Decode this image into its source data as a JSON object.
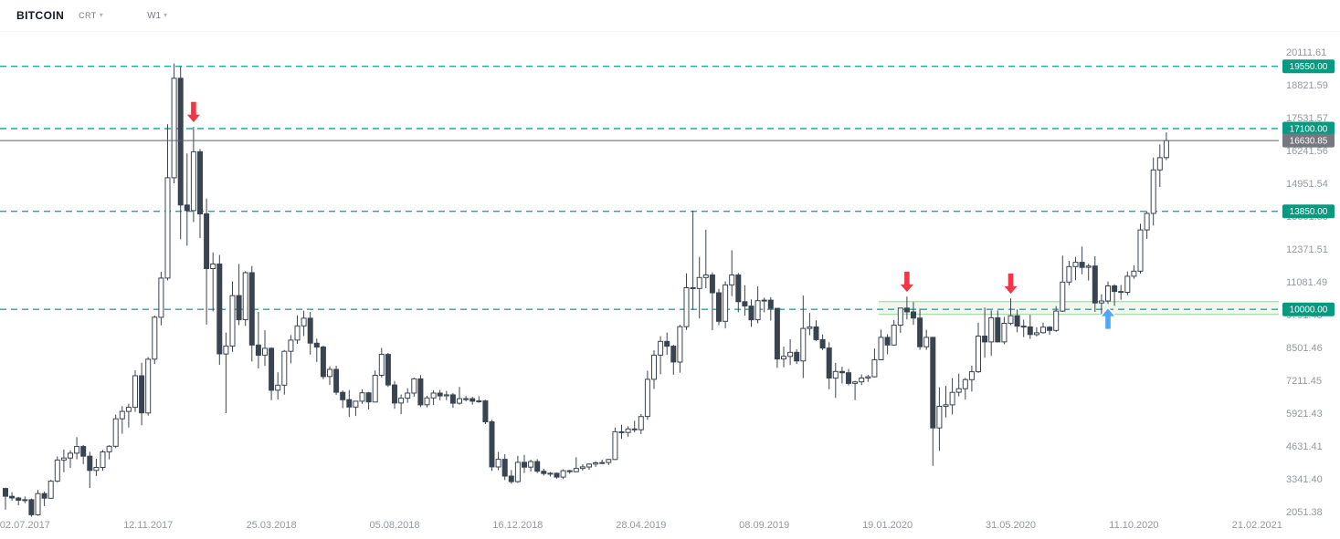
{
  "header": {
    "symbol": "BITCOIN",
    "symbol_type": "CRT",
    "timeframe": "W1"
  },
  "colors": {
    "level_line": "#26a69a",
    "level_pill": "#089981",
    "current_pill": "#75787e",
    "current_line": "#5d616b",
    "candle": "#3a4450",
    "candle_up_fill": "#ffffff",
    "zone": "#4caf50",
    "arrow_down": "#f23645",
    "arrow_up": "#4fa8f5",
    "axis_text": "#9598a1"
  },
  "chart_data": {
    "type": "candlestick",
    "symbol": "BITCOIN",
    "timeframe": "W1",
    "grid": false,
    "ylim": [
      2051.38,
      20111.61
    ],
    "current_price": {
      "value": 16630.85,
      "label": "16630.85"
    },
    "price_levels": [
      19550.0,
      17100.0,
      13850.0,
      10000.0
    ],
    "y_axis": [
      20111.61,
      18821.59,
      17531.57,
      16241.56,
      14951.54,
      13661.53,
      12371.51,
      11081.49,
      9791.48,
      8501.46,
      7211.45,
      5921.43,
      4631.41,
      3341.4,
      2051.38
    ],
    "x_axis_labels": [
      "02.07.2017",
      "12.11.2017",
      "25.03.2018",
      "05.08.2018",
      "16.12.2018",
      "28.04.2019",
      "08.09.2019",
      "19.01.2020",
      "31.05.2020",
      "11.10.2020",
      "21.02.2021"
    ],
    "support_zone": {
      "from_date": "2020-01-12",
      "top": 10300,
      "bottom": 9800
    },
    "annotations": [
      {
        "type": "arrow-down",
        "date": "2017-12-31"
      },
      {
        "type": "arrow-down",
        "date": "2020-02-09"
      },
      {
        "type": "arrow-down",
        "date": "2020-05-31"
      },
      {
        "type": "arrow-up",
        "date": "2020-09-13"
      }
    ],
    "columns": [
      "date",
      "open",
      "high",
      "low",
      "close"
    ],
    "candles": [
      [
        "2017-06-11",
        2960,
        2995,
        2130,
        2655
      ],
      [
        "2017-06-18",
        2655,
        2815,
        2480,
        2590
      ],
      [
        "2017-06-25",
        2590,
        2635,
        2300,
        2500
      ],
      [
        "2017-07-02",
        2500,
        2650,
        2380,
        2520
      ],
      [
        "2017-07-09",
        2520,
        2565,
        1850,
        1930
      ],
      [
        "2017-07-16",
        1930,
        2900,
        1890,
        2760
      ],
      [
        "2017-07-23",
        2760,
        2845,
        2270,
        2580
      ],
      [
        "2017-07-30",
        2580,
        3300,
        2560,
        3250
      ],
      [
        "2017-08-06",
        3250,
        4215,
        3210,
        4080
      ],
      [
        "2017-08-13",
        4080,
        4490,
        3600,
        4160
      ],
      [
        "2017-08-20",
        4160,
        4455,
        3770,
        4350
      ],
      [
        "2017-08-27",
        4350,
        4980,
        4110,
        4610
      ],
      [
        "2017-09-03",
        4610,
        4670,
        3920,
        4230
      ],
      [
        "2017-09-10",
        4230,
        4400,
        2980,
        3670
      ],
      [
        "2017-09-17",
        3670,
        4125,
        3450,
        3790
      ],
      [
        "2017-09-24",
        3790,
        4475,
        3660,
        4400
      ],
      [
        "2017-10-01",
        4400,
        4665,
        4110,
        4620
      ],
      [
        "2017-10-08",
        4620,
        5865,
        4550,
        5700
      ],
      [
        "2017-10-15",
        5700,
        6195,
        5110,
        5990
      ],
      [
        "2017-10-22",
        5990,
        6290,
        5360,
        6150
      ],
      [
        "2017-10-29",
        6150,
        7605,
        5970,
        7390
      ],
      [
        "2017-11-05",
        7390,
        7900,
        5450,
        5930
      ],
      [
        "2017-11-12",
        5930,
        8125,
        5820,
        8040
      ],
      [
        "2017-11-19",
        8040,
        9760,
        7850,
        9690
      ],
      [
        "2017-11-26",
        9690,
        11480,
        9370,
        11230
      ],
      [
        "2017-12-03",
        11230,
        17270,
        11140,
        15170
      ],
      [
        "2017-12-10",
        15170,
        19660,
        14950,
        19080
      ],
      [
        "2017-12-17",
        19080,
        19550,
        12760,
        14100
      ],
      [
        "2017-12-24",
        14100,
        16125,
        12500,
        13880
      ],
      [
        "2017-12-31",
        13880,
        17170,
        13430,
        16190
      ],
      [
        "2018-01-07",
        16190,
        16300,
        12800,
        13750
      ],
      [
        "2018-01-14",
        13750,
        14350,
        9400,
        11600
      ],
      [
        "2018-01-21",
        11600,
        12240,
        9920,
        11780
      ],
      [
        "2018-01-28",
        11780,
        12140,
        7820,
        8250
      ],
      [
        "2018-02-04",
        8250,
        9085,
        5920,
        8560
      ],
      [
        "2018-02-11",
        8560,
        11090,
        8330,
        10540
      ],
      [
        "2018-02-18",
        10540,
        11785,
        9380,
        9590
      ],
      [
        "2018-02-25",
        9590,
        11500,
        9350,
        11440
      ],
      [
        "2018-03-04",
        11440,
        11700,
        7950,
        8600
      ],
      [
        "2018-03-11",
        8600,
        9900,
        7680,
        8200
      ],
      [
        "2018-03-18",
        8200,
        9180,
        7780,
        8470
      ],
      [
        "2018-03-25",
        8470,
        8510,
        6430,
        6820
      ],
      [
        "2018-04-01",
        6820,
        7525,
        6450,
        7020
      ],
      [
        "2018-04-08",
        7020,
        8400,
        6650,
        8350
      ],
      [
        "2018-04-15",
        8350,
        8990,
        7880,
        8790
      ],
      [
        "2018-04-22",
        8790,
        9765,
        8650,
        9350
      ],
      [
        "2018-04-29",
        9350,
        9950,
        8950,
        9650
      ],
      [
        "2018-05-06",
        9650,
        9900,
        8220,
        8670
      ],
      [
        "2018-05-13",
        8670,
        8850,
        7930,
        8520
      ],
      [
        "2018-05-20",
        8520,
        8575,
        7250,
        7360
      ],
      [
        "2018-05-27",
        7360,
        7755,
        7030,
        7640
      ],
      [
        "2018-06-03",
        7640,
        7780,
        6640,
        6740
      ],
      [
        "2018-06-10",
        6740,
        6815,
        6120,
        6450
      ],
      [
        "2018-06-17",
        6450,
        6830,
        5770,
        6160
      ],
      [
        "2018-06-24",
        6160,
        6400,
        5810,
        6390
      ],
      [
        "2018-07-01",
        6390,
        6855,
        6290,
        6720
      ],
      [
        "2018-07-08",
        6720,
        6755,
        6070,
        6360
      ],
      [
        "2018-07-15",
        6360,
        7600,
        6340,
        7410
      ],
      [
        "2018-07-22",
        7410,
        8485,
        7310,
        8230
      ],
      [
        "2018-07-29",
        8230,
        8285,
        6950,
        7030
      ],
      [
        "2018-08-05",
        7030,
        7185,
        6090,
        6320
      ],
      [
        "2018-08-12",
        6320,
        6655,
        5880,
        6510
      ],
      [
        "2018-08-19",
        6510,
        6900,
        6330,
        6710
      ],
      [
        "2018-08-26",
        6710,
        7315,
        6560,
        7270
      ],
      [
        "2018-09-02",
        7270,
        7415,
        6160,
        6250
      ],
      [
        "2018-09-09",
        6250,
        6605,
        6150,
        6520
      ],
      [
        "2018-09-16",
        6520,
        6825,
        6240,
        6710
      ],
      [
        "2018-09-23",
        6710,
        6835,
        6430,
        6600
      ],
      [
        "2018-09-30",
        6600,
        6795,
        6430,
        6640
      ],
      [
        "2018-10-07",
        6640,
        6715,
        6130,
        6310
      ],
      [
        "2018-10-14",
        6310,
        6955,
        6250,
        6490
      ],
      [
        "2018-10-21",
        6490,
        6605,
        6380,
        6490
      ],
      [
        "2018-10-28",
        6490,
        6565,
        6260,
        6390
      ],
      [
        "2018-11-04",
        6390,
        6585,
        6330,
        6400
      ],
      [
        "2018-11-11",
        6400,
        6445,
        5490,
        5580
      ],
      [
        "2018-11-18",
        5580,
        5655,
        3650,
        3810
      ],
      [
        "2018-11-25",
        3810,
        4395,
        3680,
        4110
      ],
      [
        "2018-12-02",
        4110,
        4305,
        3290,
        3450
      ],
      [
        "2018-12-09",
        3450,
        3685,
        3150,
        3230
      ],
      [
        "2018-12-16",
        3230,
        4245,
        3180,
        3990
      ],
      [
        "2018-12-23",
        3990,
        4285,
        3570,
        3800
      ],
      [
        "2018-12-30",
        3800,
        4095,
        3630,
        4020
      ],
      [
        "2019-01-06",
        4020,
        4115,
        3570,
        3640
      ],
      [
        "2019-01-13",
        3640,
        3735,
        3470,
        3550
      ],
      [
        "2019-01-20",
        3550,
        3605,
        3430,
        3560
      ],
      [
        "2019-01-27",
        3560,
        3585,
        3350,
        3410
      ],
      [
        "2019-02-03",
        3410,
        3715,
        3330,
        3660
      ],
      [
        "2019-02-10",
        3660,
        3695,
        3540,
        3620
      ],
      [
        "2019-02-17",
        3620,
        4190,
        3600,
        3750
      ],
      [
        "2019-02-24",
        3750,
        3915,
        3660,
        3810
      ],
      [
        "2019-03-03",
        3810,
        3955,
        3700,
        3920
      ],
      [
        "2019-03-10",
        3920,
        4035,
        3810,
        3970
      ],
      [
        "2019-03-17",
        3970,
        4095,
        3920,
        3980
      ],
      [
        "2019-03-24",
        3980,
        4125,
        3880,
        4100
      ],
      [
        "2019-03-31",
        4100,
        5350,
        4080,
        5190
      ],
      [
        "2019-04-07",
        5190,
        5465,
        4910,
        5160
      ],
      [
        "2019-04-14",
        5160,
        5405,
        5000,
        5300
      ],
      [
        "2019-04-21",
        5300,
        5625,
        5170,
        5270
      ],
      [
        "2019-04-28",
        5270,
        5890,
        5100,
        5790
      ],
      [
        "2019-05-05",
        5790,
        7590,
        5660,
        7250
      ],
      [
        "2019-05-12",
        7250,
        8390,
        6870,
        8200
      ],
      [
        "2019-05-19",
        8200,
        8945,
        7450,
        8740
      ],
      [
        "2019-05-26",
        8740,
        9090,
        8210,
        8550
      ],
      [
        "2019-06-02",
        8550,
        8605,
        7430,
        7930
      ],
      [
        "2019-06-09",
        7930,
        9395,
        7510,
        9320
      ],
      [
        "2019-06-16",
        9320,
        11410,
        9190,
        10850
      ],
      [
        "2019-06-23",
        10850,
        13880,
        9980,
        10820
      ],
      [
        "2019-06-30",
        10820,
        12060,
        9640,
        11250
      ],
      [
        "2019-07-07",
        11250,
        13130,
        10830,
        11350
      ],
      [
        "2019-07-14",
        11350,
        11450,
        9180,
        10650
      ],
      [
        "2019-07-21",
        10650,
        10800,
        9380,
        9530
      ],
      [
        "2019-07-28",
        9530,
        11100,
        9250,
        10960
      ],
      [
        "2019-08-04",
        10960,
        12320,
        10520,
        11350
      ],
      [
        "2019-08-11",
        11350,
        11430,
        9880,
        10300
      ],
      [
        "2019-08-18",
        10300,
        10950,
        9750,
        10130
      ],
      [
        "2019-08-25",
        10130,
        10390,
        9320,
        9590
      ],
      [
        "2019-09-01",
        9590,
        10900,
        9450,
        10340
      ],
      [
        "2019-09-08",
        10340,
        10460,
        9880,
        10360
      ],
      [
        "2019-09-15",
        10360,
        10480,
        9560,
        10040
      ],
      [
        "2019-09-22",
        10040,
        10045,
        7700,
        8050
      ],
      [
        "2019-09-29",
        8050,
        8535,
        7720,
        8150
      ],
      [
        "2019-10-06",
        8150,
        8825,
        7810,
        8310
      ],
      [
        "2019-10-13",
        8310,
        8435,
        7850,
        7970
      ],
      [
        "2019-10-20",
        7970,
        10540,
        7300,
        9250
      ],
      [
        "2019-10-27",
        9250,
        9855,
        8980,
        9310
      ],
      [
        "2019-11-03",
        9310,
        9565,
        8760,
        8810
      ],
      [
        "2019-11-10",
        8810,
        9015,
        8400,
        8480
      ],
      [
        "2019-11-17",
        8480,
        8705,
        6860,
        7300
      ],
      [
        "2019-11-24",
        7300,
        7895,
        6520,
        7560
      ],
      [
        "2019-12-01",
        7560,
        7745,
        7090,
        7510
      ],
      [
        "2019-12-08",
        7510,
        7655,
        7010,
        7090
      ],
      [
        "2019-12-15",
        7090,
        7185,
        6430,
        7150
      ],
      [
        "2019-12-22",
        7150,
        7445,
        7020,
        7300
      ],
      [
        "2019-12-29",
        7300,
        7425,
        7150,
        7350
      ],
      [
        "2020-01-05",
        7350,
        8460,
        7320,
        8020
      ],
      [
        "2020-01-12",
        8020,
        9200,
        8000,
        8900
      ],
      [
        "2020-01-19",
        8900,
        9025,
        8230,
        8600
      ],
      [
        "2020-01-26",
        8600,
        9575,
        8570,
        9380
      ],
      [
        "2020-02-02",
        9380,
        10050,
        9080,
        10050
      ],
      [
        "2020-02-09",
        10050,
        10500,
        9600,
        9900
      ],
      [
        "2020-02-16",
        9900,
        10285,
        9390,
        9660
      ],
      [
        "2020-02-23",
        9660,
        10030,
        8410,
        8530
      ],
      [
        "2020-03-01",
        8530,
        9195,
        8410,
        8900
      ],
      [
        "2020-03-08",
        8900,
        8905,
        3850,
        5340
      ],
      [
        "2020-03-15",
        5340,
        6940,
        4440,
        6190
      ],
      [
        "2020-03-22",
        6190,
        6985,
        5750,
        6250
      ],
      [
        "2020-03-29",
        6250,
        7295,
        5870,
        6740
      ],
      [
        "2020-04-05",
        6740,
        7475,
        6580,
        6880
      ],
      [
        "2020-04-12",
        6880,
        7305,
        6450,
        7240
      ],
      [
        "2020-04-19",
        7240,
        7785,
        6770,
        7550
      ],
      [
        "2020-04-26",
        7550,
        9475,
        7500,
        8950
      ],
      [
        "2020-05-03",
        8950,
        10070,
        8100,
        8720
      ],
      [
        "2020-05-10",
        8720,
        9955,
        8170,
        9670
      ],
      [
        "2020-05-17",
        9670,
        9955,
        8700,
        8720
      ],
      [
        "2020-05-24",
        8720,
        9705,
        8630,
        9450
      ],
      [
        "2020-05-31",
        9450,
        10430,
        9380,
        9750
      ],
      [
        "2020-06-07",
        9750,
        9995,
        9100,
        9340
      ],
      [
        "2020-06-14",
        9340,
        9595,
        8910,
        9310
      ],
      [
        "2020-06-21",
        9310,
        9785,
        8840,
        9010
      ],
      [
        "2020-06-28",
        9010,
        9295,
        8940,
        9080
      ],
      [
        "2020-07-05",
        9080,
        9475,
        9050,
        9300
      ],
      [
        "2020-07-12",
        9300,
        9345,
        9000,
        9170
      ],
      [
        "2020-07-19",
        9170,
        10125,
        9110,
        9930
      ],
      [
        "2020-07-26",
        9930,
        12110,
        9900,
        11070
      ],
      [
        "2020-08-02",
        11070,
        11905,
        10940,
        11680
      ],
      [
        "2020-08-09",
        11680,
        12065,
        11150,
        11850
      ],
      [
        "2020-08-16",
        11850,
        12470,
        11380,
        11650
      ],
      [
        "2020-08-23",
        11650,
        11795,
        11130,
        11700
      ],
      [
        "2020-08-30",
        11700,
        12085,
        9900,
        10250
      ],
      [
        "2020-09-06",
        10250,
        10595,
        9820,
        10330
      ],
      [
        "2020-09-13",
        10330,
        11095,
        10210,
        10920
      ],
      [
        "2020-09-20",
        10920,
        10985,
        10140,
        10700
      ],
      [
        "2020-09-27",
        10700,
        10955,
        10380,
        10670
      ],
      [
        "2020-10-04",
        10670,
        11485,
        10550,
        11300
      ],
      [
        "2020-10-11",
        11300,
        11725,
        11200,
        11500
      ],
      [
        "2020-10-18",
        11500,
        13360,
        11400,
        13120
      ],
      [
        "2020-10-25",
        13120,
        13855,
        12770,
        13770
      ],
      [
        "2020-11-01",
        13770,
        15965,
        13290,
        15480
      ],
      [
        "2020-11-08",
        15480,
        16480,
        14810,
        15960
      ],
      [
        "2020-11-15",
        15960,
        16950,
        15860,
        16630.85
      ]
    ]
  }
}
